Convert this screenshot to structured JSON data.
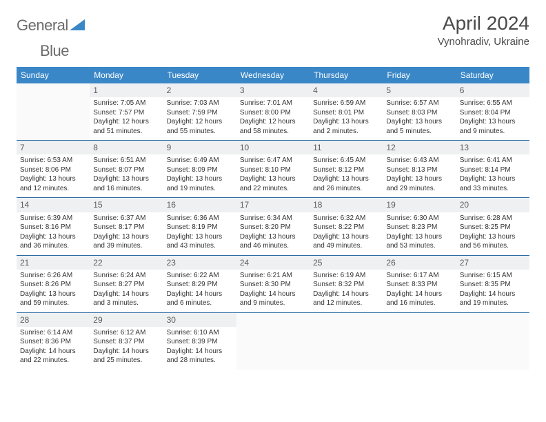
{
  "logo": {
    "word1": "General",
    "word2": "Blue",
    "brand_color": "#3a87c7",
    "text_color": "#6b6b6b"
  },
  "title": "April 2024",
  "location": "Vynohradiv, Ukraine",
  "header_bg": "#3a87c7",
  "header_fg": "#ffffff",
  "rule_color": "#2d6ca2",
  "daynum_bg": "#eef0f2",
  "day_headers": [
    "Sunday",
    "Monday",
    "Tuesday",
    "Wednesday",
    "Thursday",
    "Friday",
    "Saturday"
  ],
  "weeks": [
    [
      {
        "n": "",
        "empty": true
      },
      {
        "n": "1",
        "sr": "7:05 AM",
        "ss": "7:57 PM",
        "dl": "12 hours and 51 minutes."
      },
      {
        "n": "2",
        "sr": "7:03 AM",
        "ss": "7:59 PM",
        "dl": "12 hours and 55 minutes."
      },
      {
        "n": "3",
        "sr": "7:01 AM",
        "ss": "8:00 PM",
        "dl": "12 hours and 58 minutes."
      },
      {
        "n": "4",
        "sr": "6:59 AM",
        "ss": "8:01 PM",
        "dl": "13 hours and 2 minutes."
      },
      {
        "n": "5",
        "sr": "6:57 AM",
        "ss": "8:03 PM",
        "dl": "13 hours and 5 minutes."
      },
      {
        "n": "6",
        "sr": "6:55 AM",
        "ss": "8:04 PM",
        "dl": "13 hours and 9 minutes."
      }
    ],
    [
      {
        "n": "7",
        "sr": "6:53 AM",
        "ss": "8:06 PM",
        "dl": "13 hours and 12 minutes."
      },
      {
        "n": "8",
        "sr": "6:51 AM",
        "ss": "8:07 PM",
        "dl": "13 hours and 16 minutes."
      },
      {
        "n": "9",
        "sr": "6:49 AM",
        "ss": "8:09 PM",
        "dl": "13 hours and 19 minutes."
      },
      {
        "n": "10",
        "sr": "6:47 AM",
        "ss": "8:10 PM",
        "dl": "13 hours and 22 minutes."
      },
      {
        "n": "11",
        "sr": "6:45 AM",
        "ss": "8:12 PM",
        "dl": "13 hours and 26 minutes."
      },
      {
        "n": "12",
        "sr": "6:43 AM",
        "ss": "8:13 PM",
        "dl": "13 hours and 29 minutes."
      },
      {
        "n": "13",
        "sr": "6:41 AM",
        "ss": "8:14 PM",
        "dl": "13 hours and 33 minutes."
      }
    ],
    [
      {
        "n": "14",
        "sr": "6:39 AM",
        "ss": "8:16 PM",
        "dl": "13 hours and 36 minutes."
      },
      {
        "n": "15",
        "sr": "6:37 AM",
        "ss": "8:17 PM",
        "dl": "13 hours and 39 minutes."
      },
      {
        "n": "16",
        "sr": "6:36 AM",
        "ss": "8:19 PM",
        "dl": "13 hours and 43 minutes."
      },
      {
        "n": "17",
        "sr": "6:34 AM",
        "ss": "8:20 PM",
        "dl": "13 hours and 46 minutes."
      },
      {
        "n": "18",
        "sr": "6:32 AM",
        "ss": "8:22 PM",
        "dl": "13 hours and 49 minutes."
      },
      {
        "n": "19",
        "sr": "6:30 AM",
        "ss": "8:23 PM",
        "dl": "13 hours and 53 minutes."
      },
      {
        "n": "20",
        "sr": "6:28 AM",
        "ss": "8:25 PM",
        "dl": "13 hours and 56 minutes."
      }
    ],
    [
      {
        "n": "21",
        "sr": "6:26 AM",
        "ss": "8:26 PM",
        "dl": "13 hours and 59 minutes."
      },
      {
        "n": "22",
        "sr": "6:24 AM",
        "ss": "8:27 PM",
        "dl": "14 hours and 3 minutes."
      },
      {
        "n": "23",
        "sr": "6:22 AM",
        "ss": "8:29 PM",
        "dl": "14 hours and 6 minutes."
      },
      {
        "n": "24",
        "sr": "6:21 AM",
        "ss": "8:30 PM",
        "dl": "14 hours and 9 minutes."
      },
      {
        "n": "25",
        "sr": "6:19 AM",
        "ss": "8:32 PM",
        "dl": "14 hours and 12 minutes."
      },
      {
        "n": "26",
        "sr": "6:17 AM",
        "ss": "8:33 PM",
        "dl": "14 hours and 16 minutes."
      },
      {
        "n": "27",
        "sr": "6:15 AM",
        "ss": "8:35 PM",
        "dl": "14 hours and 19 minutes."
      }
    ],
    [
      {
        "n": "28",
        "sr": "6:14 AM",
        "ss": "8:36 PM",
        "dl": "14 hours and 22 minutes."
      },
      {
        "n": "29",
        "sr": "6:12 AM",
        "ss": "8:37 PM",
        "dl": "14 hours and 25 minutes."
      },
      {
        "n": "30",
        "sr": "6:10 AM",
        "ss": "8:39 PM",
        "dl": "14 hours and 28 minutes."
      },
      {
        "n": "",
        "empty": true
      },
      {
        "n": "",
        "empty": true
      },
      {
        "n": "",
        "empty": true
      },
      {
        "n": "",
        "empty": true
      }
    ]
  ],
  "labels": {
    "sunrise": "Sunrise:",
    "sunset": "Sunset:",
    "daylight": "Daylight:"
  }
}
